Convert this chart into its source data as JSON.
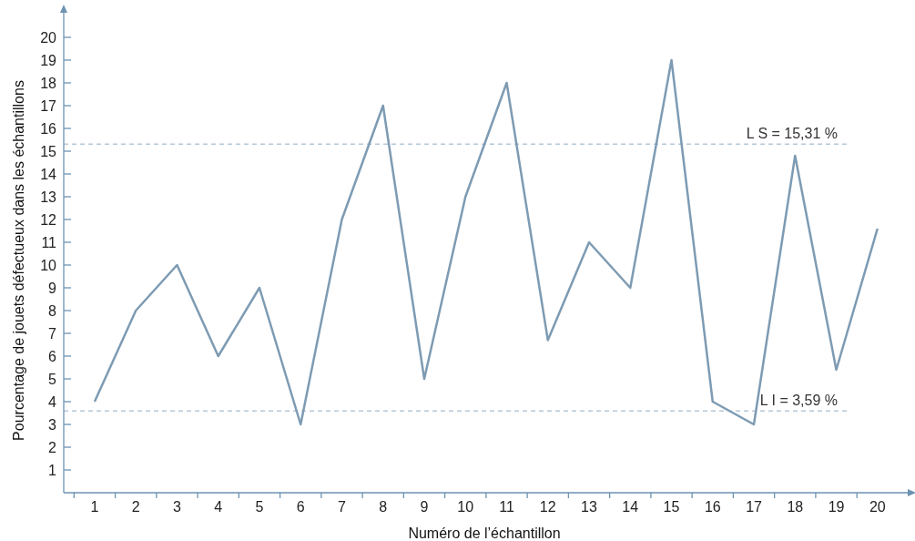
{
  "chart_data": {
    "type": "line",
    "xlabel": "Numéro de l’échantillon",
    "ylabel": "Pourcentage de jouets défectueux dans les échantillons",
    "x": [
      1,
      2,
      3,
      4,
      5,
      6,
      7,
      8,
      9,
      10,
      11,
      12,
      13,
      14,
      15,
      16,
      17,
      18,
      19,
      20
    ],
    "series": [
      {
        "color": "#7d9bb3",
        "values": [
          4,
          8,
          10,
          6,
          9,
          3,
          12,
          17,
          5,
          13,
          18,
          6.7,
          11,
          9,
          19,
          4,
          3,
          14.8,
          5.4,
          11.6
        ]
      }
    ],
    "xlim": [
      0.25,
      20.8
    ],
    "xticks": [
      1,
      2,
      3,
      4,
      5,
      6,
      7,
      8,
      9,
      10,
      11,
      12,
      13,
      14,
      15,
      16,
      17,
      18,
      19,
      20
    ],
    "ylim": [
      0,
      21.2
    ],
    "yticks": [
      1,
      2,
      3,
      4,
      5,
      6,
      7,
      8,
      9,
      10,
      11,
      12,
      13,
      14,
      15,
      16,
      17,
      18,
      19,
      20
    ],
    "ref_lines": [
      {
        "axis": "y",
        "value": 15.31,
        "label": "L S = 15,31 %",
        "color": "#b5c8d8",
        "line_style": "dashed"
      },
      {
        "axis": "y",
        "value": 3.59,
        "label": "L I = 3,59 %",
        "color": "#b5c8d8",
        "line_style": "dashed"
      }
    ],
    "grid": false,
    "marker": "none",
    "line_style": "solid"
  }
}
